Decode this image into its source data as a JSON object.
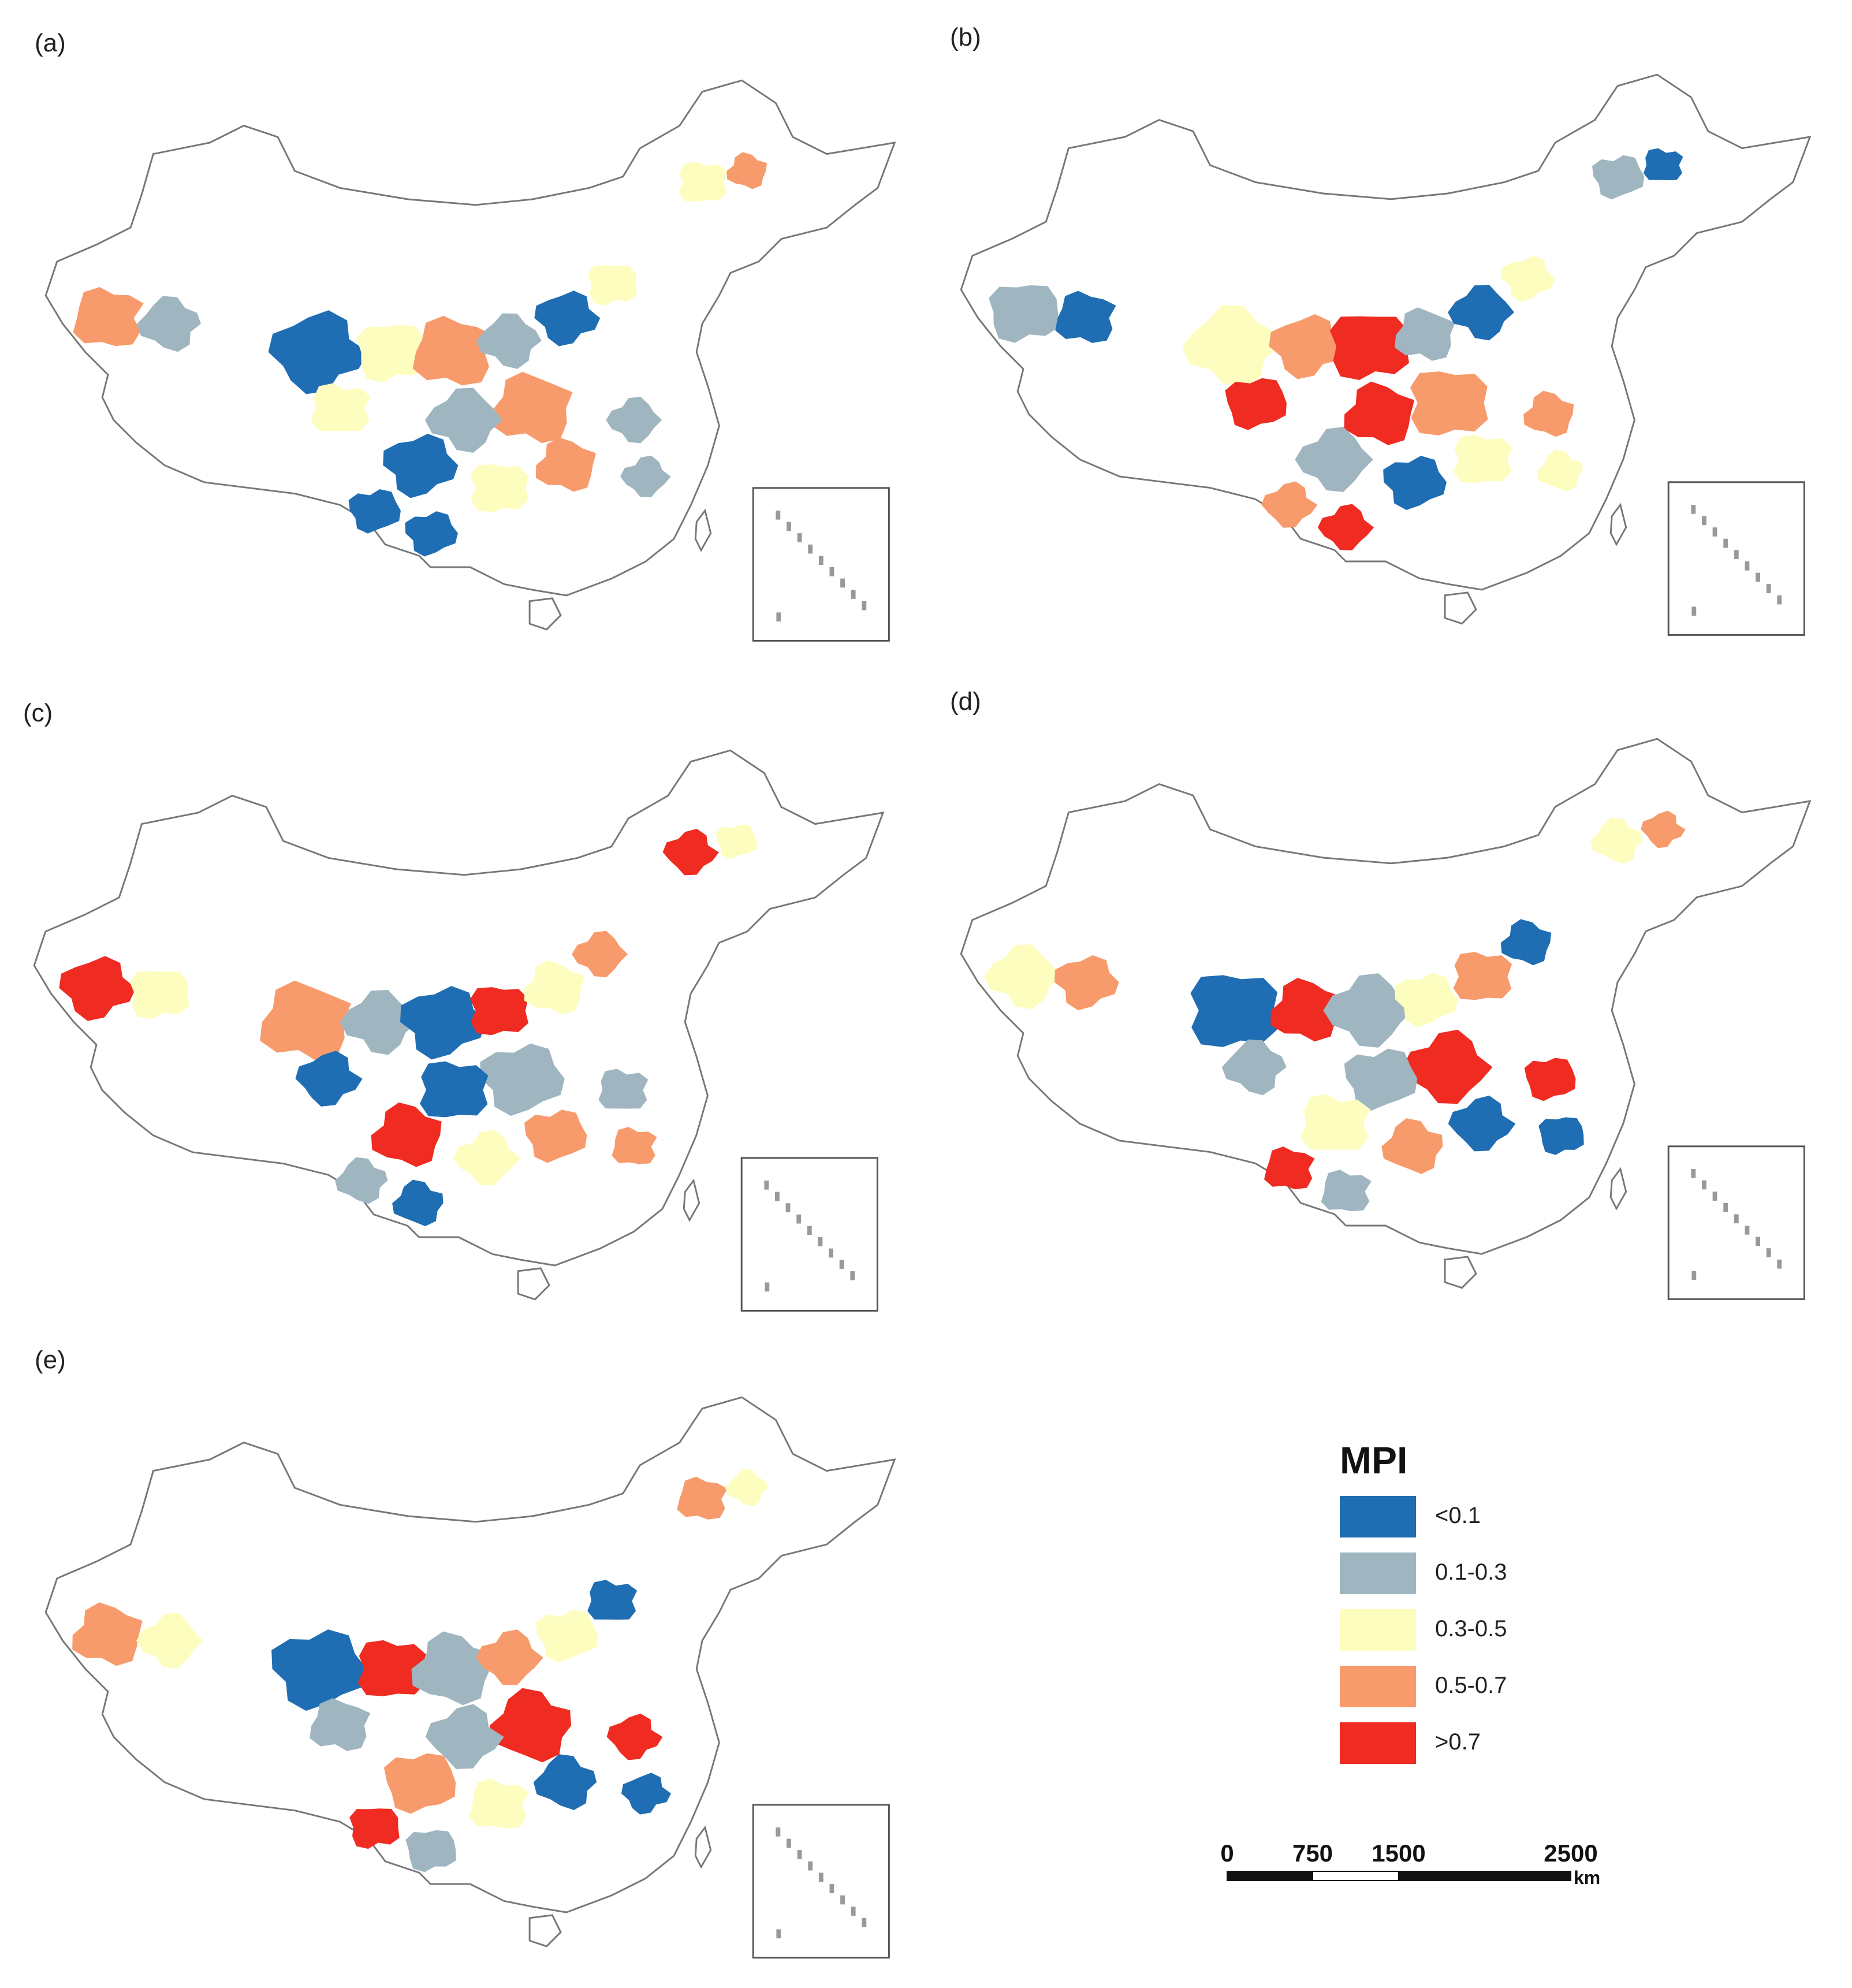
{
  "panels": [
    {
      "label": "(a)",
      "dominant_classes": [
        "0.5-0.7",
        "0.3-0.5",
        "<0.1",
        "0.1-0.3"
      ]
    },
    {
      "label": "(b)",
      "dominant_classes": [
        "0.5-0.7",
        "0.1-0.3",
        "0.3-0.5",
        ">0.7",
        "<0.1"
      ]
    },
    {
      "label": "(c)",
      "dominant_classes": [
        "0.3-0.5",
        "0.1-0.3",
        ">0.7",
        "0.5-0.7",
        "<0.1"
      ]
    },
    {
      "label": "(d)",
      "dominant_classes": [
        "0.1-0.3",
        "0.5-0.7",
        ">0.7",
        "0.3-0.5",
        "<0.1"
      ]
    },
    {
      "label": "(e)",
      "dominant_classes": [
        "<0.1",
        "0.1-0.3",
        "0.3-0.5",
        ">0.7",
        "0.5-0.7"
      ]
    }
  ],
  "legend": {
    "title": "MPI",
    "items": [
      {
        "label": "<0.1",
        "color": "#1f6eb4"
      },
      {
        "label": "0.1-0.3",
        "color": "#9fb6c1"
      },
      {
        "label": "0.3-0.5",
        "color": "#fdfdbf"
      },
      {
        "label": "0.5-0.7",
        "color": "#f89b6c"
      },
      {
        "label": ">0.7",
        "color": "#ef2b22"
      }
    ]
  },
  "scale_bar": {
    "ticks": [
      "0",
      "750",
      "1500",
      "2500"
    ],
    "unit": "km"
  }
}
